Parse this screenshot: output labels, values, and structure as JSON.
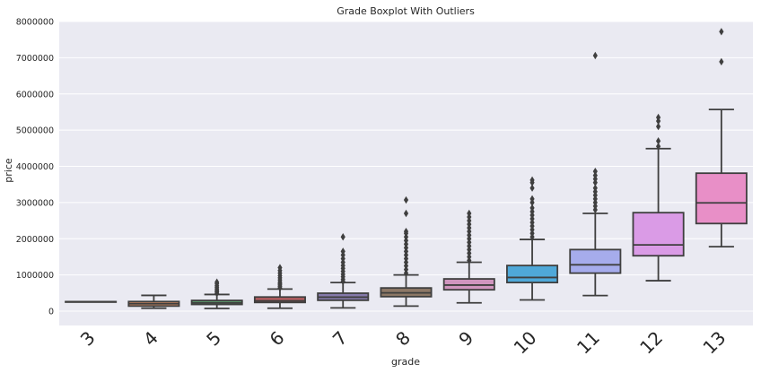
{
  "chart_data": {
    "type": "box",
    "title": "Grade Boxplot With Outliers",
    "xlabel": "grade",
    "ylabel": "price",
    "ylim": [
      -300000,
      8000000
    ],
    "yticks": [
      0,
      1000000,
      2000000,
      3000000,
      4000000,
      5000000,
      6000000,
      7000000,
      8000000
    ],
    "ytick_labels": [
      "0",
      "1000000",
      "2000000",
      "3000000",
      "4000000",
      "5000000",
      "6000000",
      "7000000",
      "8000000"
    ],
    "grid": true,
    "background": "#eaeaf2",
    "categories": [
      "3",
      "4",
      "5",
      "6",
      "7",
      "8",
      "9",
      "10",
      "11",
      "12",
      "13"
    ],
    "colors": [
      "#3274a1",
      "#e1812c",
      "#3a923a",
      "#c03d3e",
      "#9372b2",
      "#845b53",
      "#d684bd",
      "#7f7f7f",
      "#a9aa35",
      "#2eb3c2",
      "#4c72b0"
    ],
    "boxes": [
      {
        "category": "3",
        "color": "#5975a4",
        "whislo": 262000,
        "q1": 262000,
        "med": 262000,
        "q3": 262000,
        "whishi": 262000,
        "fliers": []
      },
      {
        "category": "4",
        "color": "#cc8963",
        "whislo": 80000,
        "q1": 140000,
        "med": 205000,
        "q3": 265000,
        "whishi": 435000,
        "fliers": []
      },
      {
        "category": "5",
        "color": "#5f9e6e",
        "whislo": 75000,
        "q1": 185000,
        "med": 230000,
        "q3": 295000,
        "whishi": 460000,
        "fliers": [
          490000,
          530000,
          560000,
          600000,
          650000,
          700000,
          760000,
          800000
        ]
      },
      {
        "category": "6",
        "color": "#b55d60",
        "whislo": 80000,
        "q1": 240000,
        "med": 285000,
        "q3": 390000,
        "whishi": 610000,
        "fliers": [
          640000,
          680000,
          720000,
          760000,
          800000,
          860000,
          920000,
          980000,
          1050000,
          1120000,
          1200000
        ]
      },
      {
        "category": "7",
        "color": "#857aab",
        "whislo": 90000,
        "q1": 300000,
        "med": 385000,
        "q3": 495000,
        "whishi": 790000,
        "fliers": [
          820000,
          880000,
          950000,
          1020000,
          1100000,
          1180000,
          1260000,
          1350000,
          1450000,
          1550000,
          1650000,
          2050000
        ]
      },
      {
        "category": "8",
        "color": "#8d7866",
        "whislo": 140000,
        "q1": 400000,
        "med": 505000,
        "q3": 640000,
        "whishi": 1000000,
        "fliers": [
          1050000,
          1150000,
          1250000,
          1350000,
          1450000,
          1550000,
          1650000,
          1750000,
          1850000,
          1950000,
          2050000,
          2150000,
          2200000,
          2700000,
          3070000
        ]
      },
      {
        "category": "9",
        "color": "#d095bf",
        "whislo": 230000,
        "q1": 590000,
        "med": 720000,
        "q3": 890000,
        "whishi": 1350000,
        "fliers": [
          1400000,
          1500000,
          1600000,
          1700000,
          1800000,
          1900000,
          2000000,
          2100000,
          2200000,
          2300000,
          2400000,
          2500000,
          2600000,
          2700000
        ]
      },
      {
        "category": "10",
        "color": "#4fa8d8",
        "whislo": 310000,
        "q1": 790000,
        "med": 930000,
        "q3": 1260000,
        "whishi": 1980000,
        "fliers": [
          2050000,
          2150000,
          2250000,
          2350000,
          2450000,
          2550000,
          2650000,
          2750000,
          2850000,
          3000000,
          3100000,
          3400000,
          3550000,
          3620000
        ]
      },
      {
        "category": "11",
        "color": "#a6acec",
        "whislo": 430000,
        "q1": 1050000,
        "med": 1280000,
        "q3": 1700000,
        "whishi": 2700000,
        "fliers": [
          2800000,
          2900000,
          3000000,
          3100000,
          3200000,
          3300000,
          3400000,
          3550000,
          3650000,
          3750000,
          3860000,
          7060000
        ]
      },
      {
        "category": "12",
        "color": "#da9be6",
        "whislo": 840000,
        "q1": 1530000,
        "med": 1830000,
        "q3": 2720000,
        "whishi": 4490000,
        "fliers": [
          4550000,
          4700000,
          5100000,
          5250000,
          5350000
        ]
      },
      {
        "category": "13",
        "color": "#e88fc7",
        "whislo": 1780000,
        "q1": 2420000,
        "med": 2990000,
        "q3": 3810000,
        "whishi": 5570000,
        "fliers": [
          6890000,
          7720000
        ]
      }
    ]
  }
}
